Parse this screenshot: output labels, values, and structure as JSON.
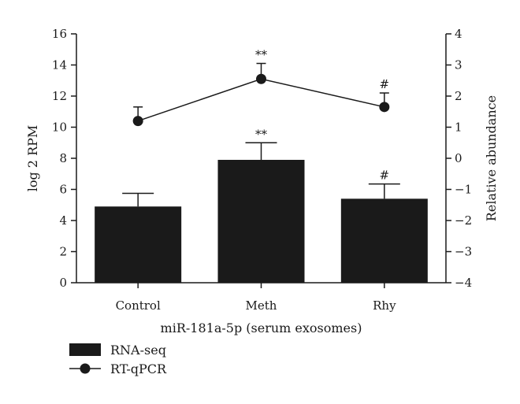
{
  "chart_data": {
    "type": "bar",
    "categories": [
      "Control",
      "Meth",
      "Rhy"
    ],
    "xlabel": "miR-181a-5p (serum exosomes)",
    "ylabel": "log 2 RPM",
    "ylabel_right": "Relative abundance",
    "ylim": [
      0,
      16
    ],
    "ylim_right": [
      -4,
      4
    ],
    "yticks": [
      0,
      2,
      4,
      6,
      8,
      10,
      12,
      14,
      16
    ],
    "yticks_right": [
      -4,
      -3,
      -2,
      -1,
      0,
      1,
      2,
      3,
      4
    ],
    "series": [
      {
        "name": "RNA-seq",
        "type": "bar",
        "axis": "left",
        "values": [
          4.9,
          7.9,
          5.4
        ],
        "errors": [
          0.85,
          1.1,
          0.95
        ],
        "significance": [
          "",
          "**",
          "#"
        ],
        "color": "#1a1a1a"
      },
      {
        "name": "RT-qPCR",
        "type": "line",
        "axis": "right",
        "values": [
          1.2,
          2.55,
          1.65
        ],
        "errors": [
          0.45,
          0.5,
          0.45
        ],
        "significance": [
          "",
          "**",
          "#"
        ],
        "color": "#1a1a1a"
      }
    ],
    "legend_position": "bottom-left"
  }
}
